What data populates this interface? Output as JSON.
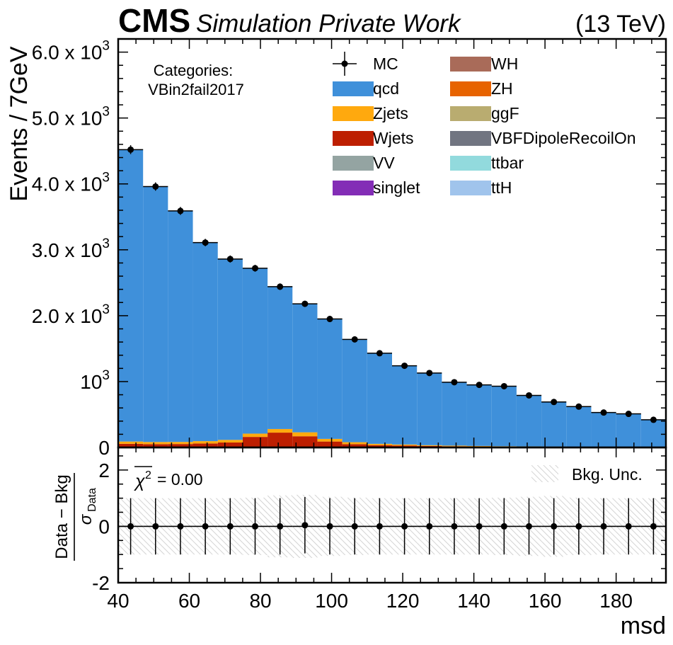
{
  "header": {
    "cms": "CMS",
    "subtitle": "Simulation Private Work",
    "energy": "(13 TeV)"
  },
  "category_box": {
    "line1": "Categories:",
    "line2": "VBin2fail2017"
  },
  "colors": {
    "qcd": "#3f90da",
    "Zjets": "#ffa90e",
    "Wjets": "#bd1f01",
    "VV": "#94a4a2",
    "singlet": "#832db6",
    "WH": "#a96b59",
    "ZH": "#e76300",
    "ggF": "#b9ac70",
    "VBFDipoleRecoilOn": "#717581",
    "ttbar": "#92dadd",
    "ttH": "#a0c4ec",
    "hatch": "#c8c8c8"
  },
  "legend": [
    {
      "key": "MC",
      "label": "MC",
      "marker": "point"
    },
    {
      "key": "qcd",
      "label": "qcd"
    },
    {
      "key": "Zjets",
      "label": "Zjets"
    },
    {
      "key": "Wjets",
      "label": "Wjets"
    },
    {
      "key": "VV",
      "label": "VV"
    },
    {
      "key": "singlet",
      "label": "singlet"
    },
    {
      "key": "WH",
      "label": "WH"
    },
    {
      "key": "ZH",
      "label": "ZH"
    },
    {
      "key": "ggF",
      "label": "ggF"
    },
    {
      "key": "VBFDipoleRecoilOn",
      "label": "VBFDipoleRecoilOn"
    },
    {
      "key": "ttbar",
      "label": "ttbar"
    },
    {
      "key": "ttH",
      "label": "ttH"
    }
  ],
  "ratio_text": {
    "chi2": "= 0.00",
    "unc_label": "Bkg. Unc."
  },
  "chart_data": [
    {
      "type": "bar",
      "panel": "main",
      "ylabel": "Events / 7GeV",
      "xlim": [
        40,
        194
      ],
      "ylim": [
        0,
        6200
      ],
      "bin_edges": [
        40,
        47,
        54,
        61,
        68,
        75,
        82,
        89,
        96,
        103,
        110,
        117,
        124,
        131,
        138,
        145,
        152,
        159,
        166,
        173,
        180,
        187,
        194
      ],
      "y_ticks": [
        {
          "value": 0,
          "label": "0"
        },
        {
          "value": 1000,
          "label": "10",
          "exp": "3"
        },
        {
          "value": 2000,
          "label": "2.0 x 10",
          "exp": "3"
        },
        {
          "value": 3000,
          "label": "3.0 x 10",
          "exp": "3"
        },
        {
          "value": 4000,
          "label": "4.0 x 10",
          "exp": "3"
        },
        {
          "value": 5000,
          "label": "5.0 x 10",
          "exp": "3"
        },
        {
          "value": 6000,
          "label": "6.0 x 10",
          "exp": "3"
        }
      ],
      "stack": [
        {
          "name": "Wjets",
          "values": [
            55,
            50,
            52,
            60,
            75,
            160,
            225,
            170,
            90,
            50,
            35,
            30,
            22,
            18,
            15,
            12,
            10,
            8,
            7,
            6,
            5,
            4
          ]
        },
        {
          "name": "Zjets",
          "values": [
            35,
            33,
            32,
            36,
            40,
            50,
            55,
            60,
            40,
            30,
            20,
            15,
            12,
            10,
            8,
            7,
            6,
            5,
            4,
            4,
            3,
            3
          ]
        },
        {
          "name": "qcd",
          "values": [
            4430,
            3877,
            3506,
            3014,
            2745,
            2510,
            2160,
            1950,
            1820,
            1560,
            1375,
            1195,
            1096,
            962,
            927,
            911,
            774,
            677,
            609,
            520,
            502,
            413
          ]
        }
      ],
      "mc_points": {
        "name": "MC",
        "x": [
          43.5,
          50.5,
          57.5,
          64.5,
          71.5,
          78.5,
          85.5,
          92.5,
          99.5,
          106.5,
          113.5,
          120.5,
          127.5,
          134.5,
          141.5,
          148.5,
          155.5,
          162.5,
          169.5,
          176.5,
          183.5,
          190.5
        ],
        "y": [
          4520,
          3960,
          3590,
          3110,
          2860,
          2720,
          2440,
          2180,
          1950,
          1640,
          1430,
          1240,
          1130,
          990,
          950,
          930,
          790,
          690,
          620,
          530,
          510,
          420
        ]
      }
    },
    {
      "type": "scatter",
      "panel": "ratio",
      "ylabel": "Data − Bkg / σData",
      "xlabel": "msd",
      "xlim": [
        40,
        194
      ],
      "ylim": [
        -2,
        2.8
      ],
      "x_ticks": [
        40,
        60,
        80,
        100,
        120,
        140,
        160,
        180
      ],
      "y_ticks": [
        -2,
        0,
        2
      ],
      "x": [
        43.5,
        50.5,
        57.5,
        64.5,
        71.5,
        78.5,
        85.5,
        92.5,
        99.5,
        106.5,
        113.5,
        120.5,
        127.5,
        134.5,
        141.5,
        148.5,
        155.5,
        162.5,
        169.5,
        176.5,
        183.5,
        190.5
      ],
      "y": [
        0,
        0,
        0,
        0,
        0,
        0,
        0,
        0.04,
        0,
        0,
        0,
        0,
        0,
        0,
        0,
        0,
        0,
        0,
        0,
        0,
        0,
        0
      ],
      "yerr": [
        1,
        1,
        1,
        1,
        1,
        1,
        1,
        1,
        1,
        1,
        1,
        1,
        1,
        1,
        1,
        1,
        1,
        1,
        1,
        1,
        1,
        1
      ],
      "unc_band": [
        1.0,
        1.0,
        1.0,
        1.0,
        1.0,
        1.02,
        1.1,
        1.12,
        1.05,
        1.02,
        1.0,
        1.0,
        1.0,
        1.0,
        1.0,
        1.02,
        1.05,
        1.08,
        1.02,
        1.0,
        1.0,
        1.0
      ]
    }
  ]
}
